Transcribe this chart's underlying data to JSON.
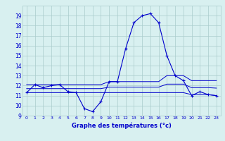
{
  "xlabel": "Graphe des températures (°c)",
  "hours": [
    0,
    1,
    2,
    3,
    4,
    5,
    6,
    7,
    8,
    9,
    10,
    11,
    12,
    13,
    14,
    15,
    16,
    17,
    18,
    19,
    20,
    21,
    22,
    23
  ],
  "temp_main": [
    11.3,
    12.1,
    11.8,
    12.0,
    12.1,
    11.4,
    11.3,
    9.7,
    9.4,
    10.4,
    12.4,
    12.4,
    15.7,
    18.3,
    19.0,
    19.2,
    18.3,
    15.0,
    13.0,
    12.5,
    11.0,
    11.4,
    11.1,
    11.0
  ],
  "temp_min": [
    11.3,
    11.3,
    11.3,
    11.3,
    11.3,
    11.3,
    11.3,
    11.3,
    11.3,
    11.3,
    11.3,
    11.3,
    11.3,
    11.3,
    11.3,
    11.3,
    11.3,
    11.3,
    11.3,
    11.3,
    11.1,
    11.1,
    11.1,
    11.0
  ],
  "temp_max": [
    12.1,
    12.1,
    12.1,
    12.1,
    12.1,
    12.1,
    12.1,
    12.1,
    12.1,
    12.1,
    12.4,
    12.4,
    12.4,
    12.4,
    12.4,
    12.4,
    12.4,
    13.0,
    13.0,
    13.0,
    12.5,
    12.5,
    12.5,
    12.5
  ],
  "temp_avg": [
    11.7,
    11.7,
    11.7,
    11.7,
    11.7,
    11.7,
    11.7,
    11.7,
    11.7,
    11.7,
    11.85,
    11.85,
    11.85,
    11.85,
    11.85,
    11.85,
    11.85,
    12.15,
    12.15,
    12.15,
    11.8,
    11.8,
    11.8,
    11.75
  ],
  "line_color": "#0000cc",
  "bg_color": "#d8f0f0",
  "grid_color": "#aacccc",
  "ylim": [
    9,
    20
  ],
  "yticks": [
    9,
    10,
    11,
    12,
    13,
    14,
    15,
    16,
    17,
    18,
    19
  ],
  "xlim": [
    -0.5,
    23.5
  ],
  "xtick_fontsize": 4.5,
  "ytick_fontsize": 5.5,
  "xlabel_fontsize": 6.0
}
